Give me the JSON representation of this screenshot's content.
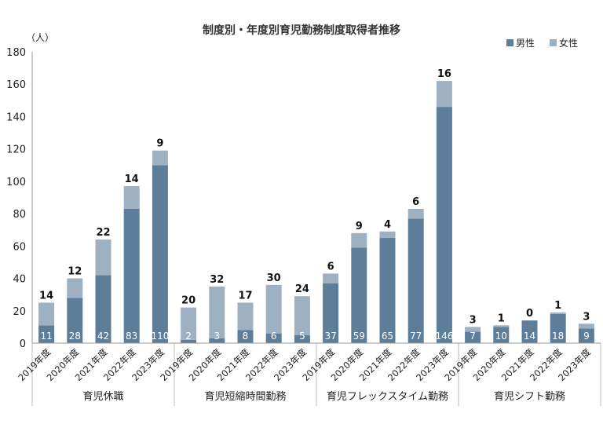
{
  "chart_data": {
    "type": "bar",
    "stacked": true,
    "title": "制度別・年度別育児勤務制度取得者推移",
    "unit_label": "（人）",
    "ylim": [
      0,
      180
    ],
    "yticks": [
      0,
      20,
      40,
      60,
      80,
      100,
      120,
      140,
      160,
      180
    ],
    "grid": false,
    "legend_position": "top-right",
    "groups": [
      {
        "name": "育児休職",
        "categories": [
          "2019年度",
          "2020年度",
          "2021年度",
          "2022年度",
          "2023年度"
        ],
        "male": [
          11,
          28,
          42,
          83,
          110
        ],
        "female": [
          14,
          12,
          22,
          14,
          9
        ]
      },
      {
        "name": "育児短縮時間勤務",
        "categories": [
          "2019年度",
          "2020年度",
          "2021年度",
          "2022年度",
          "2023年度"
        ],
        "male": [
          2,
          3,
          8,
          6,
          5
        ],
        "female": [
          20,
          32,
          17,
          30,
          24
        ]
      },
      {
        "name": "育児フレックスタイム勤務",
        "categories": [
          "2019年度",
          "2020年度",
          "2021年度",
          "2022年度",
          "2023年度"
        ],
        "male": [
          37,
          59,
          65,
          77,
          146
        ],
        "female": [
          6,
          9,
          4,
          6,
          16
        ]
      },
      {
        "name": "育児シフト勤務",
        "categories": [
          "2019年度",
          "2020年度",
          "2021年度",
          "2022年度",
          "2023年度"
        ],
        "male": [
          7,
          10,
          14,
          18,
          9
        ],
        "female": [
          3,
          1,
          0,
          1,
          3
        ]
      }
    ],
    "series": [
      {
        "name": "男性",
        "color": "#5d7d98"
      },
      {
        "name": "女性",
        "color": "#9db1c3"
      }
    ]
  }
}
